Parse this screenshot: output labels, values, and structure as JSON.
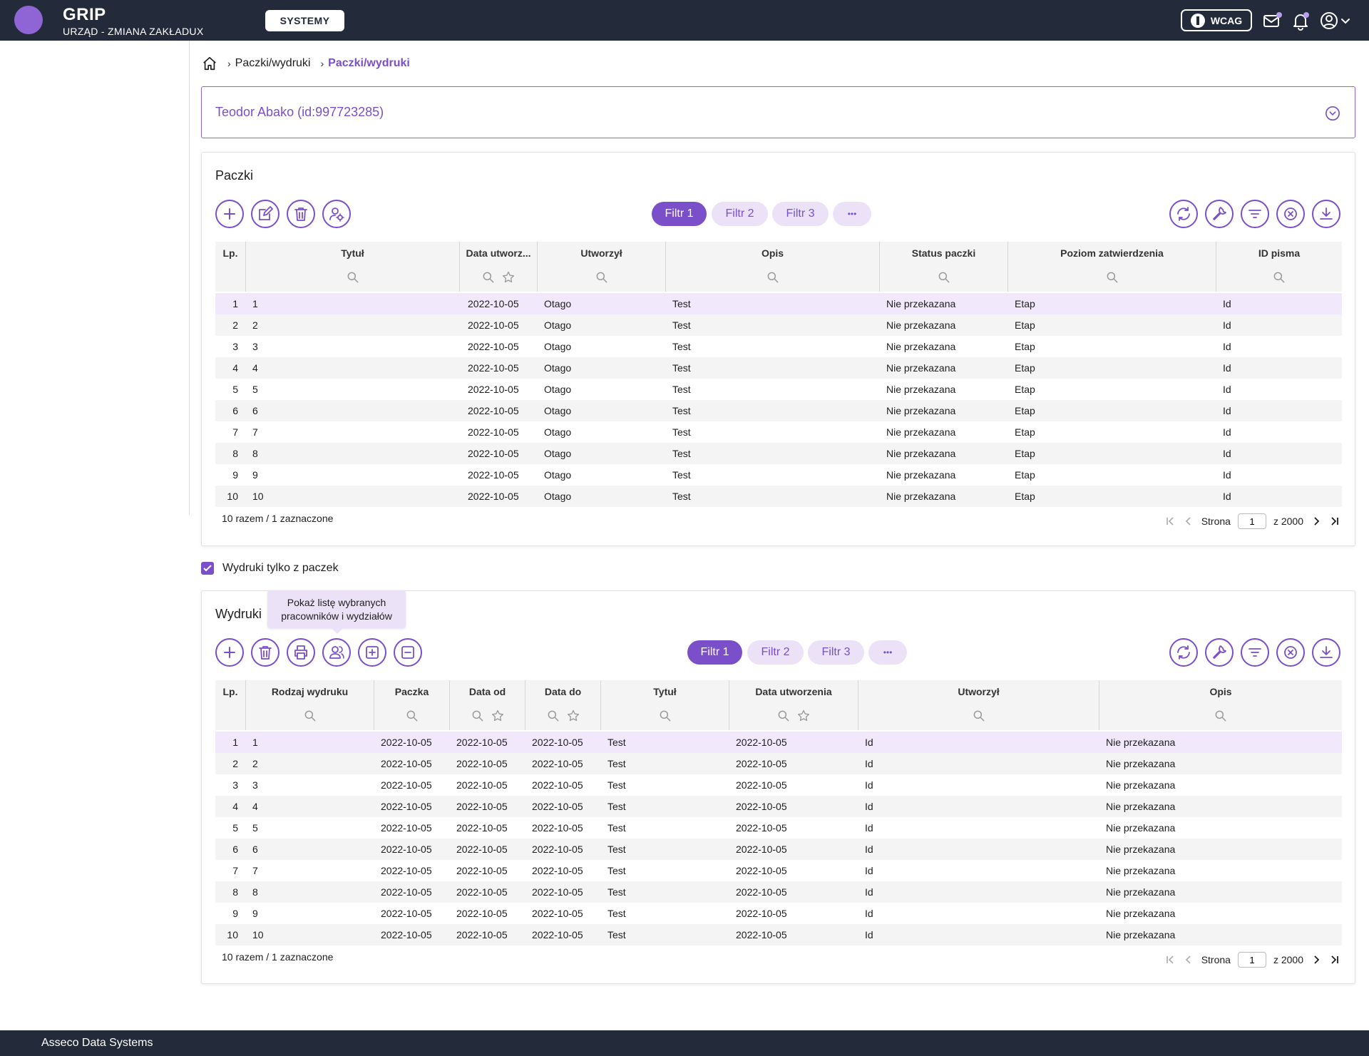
{
  "header": {
    "app_name": "GRIP",
    "app_subtitle": "URZĄD - ZMIANA ZAKŁADUX",
    "systems_button": "SYSTEMY",
    "wcag_button": "WCAG"
  },
  "breadcrumb": {
    "item1": "Paczki/wydruki",
    "item2": "Paczki/wydruki"
  },
  "person": {
    "name": "Teodor Abako (id:997723285)"
  },
  "paczki": {
    "title": "Paczki",
    "filters": [
      "Filtr 1",
      "Filtr 2",
      "Filtr 3"
    ],
    "more_label": "•••",
    "columns": [
      "Lp.",
      "Tytuł",
      "Data utworz...",
      "Utworzył",
      "Opis",
      "Status paczki",
      "Poziom zatwierdzenia",
      "ID pisma"
    ],
    "rows": [
      [
        "1",
        "1",
        "2022-10-05",
        "Otago",
        "Test",
        "Nie przekazana",
        "Etap",
        "Id"
      ],
      [
        "2",
        "2",
        "2022-10-05",
        "Otago",
        "Test",
        "Nie przekazana",
        "Etap",
        "Id"
      ],
      [
        "3",
        "3",
        "2022-10-05",
        "Otago",
        "Test",
        "Nie przekazana",
        "Etap",
        "Id"
      ],
      [
        "4",
        "4",
        "2022-10-05",
        "Otago",
        "Test",
        "Nie przekazana",
        "Etap",
        "Id"
      ],
      [
        "5",
        "5",
        "2022-10-05",
        "Otago",
        "Test",
        "Nie przekazana",
        "Etap",
        "Id"
      ],
      [
        "6",
        "6",
        "2022-10-05",
        "Otago",
        "Test",
        "Nie przekazana",
        "Etap",
        "Id"
      ],
      [
        "7",
        "7",
        "2022-10-05",
        "Otago",
        "Test",
        "Nie przekazana",
        "Etap",
        "Id"
      ],
      [
        "8",
        "8",
        "2022-10-05",
        "Otago",
        "Test",
        "Nie przekazana",
        "Etap",
        "Id"
      ],
      [
        "9",
        "9",
        "2022-10-05",
        "Otago",
        "Test",
        "Nie przekazana",
        "Etap",
        "Id"
      ],
      [
        "10",
        "10",
        "2022-10-05",
        "Otago",
        "Test",
        "Nie przekazana",
        "Etap",
        "Id"
      ]
    ],
    "summary": "10 razem / 1 zaznaczone",
    "pager": {
      "label": "Strona",
      "page": "1",
      "of": "z 2000"
    }
  },
  "checkbox": {
    "label": "Wydruki tylko z paczek",
    "checked": true
  },
  "tooltip": {
    "line1": "Pokaż listę wybranych",
    "line2": "pracowników i wydziałów"
  },
  "wydruki": {
    "title": "Wydruki",
    "filters": [
      "Filtr 1",
      "Filtr 2",
      "Filtr 3"
    ],
    "more_label": "•••",
    "columns": [
      "Lp.",
      "Rodzaj wydruku",
      "Paczka",
      "Data od",
      "Data do",
      "Tytuł",
      "Data utworzenia",
      "Utworzył",
      "Opis"
    ],
    "rows": [
      [
        "1",
        "1",
        "2022-10-05",
        "2022-10-05",
        "2022-10-05",
        "Test",
        "2022-10-05",
        "Id",
        "Nie przekazana"
      ],
      [
        "2",
        "2",
        "2022-10-05",
        "2022-10-05",
        "2022-10-05",
        "Test",
        "2022-10-05",
        "Id",
        "Nie przekazana"
      ],
      [
        "3",
        "3",
        "2022-10-05",
        "2022-10-05",
        "2022-10-05",
        "Test",
        "2022-10-05",
        "Id",
        "Nie przekazana"
      ],
      [
        "4",
        "4",
        "2022-10-05",
        "2022-10-05",
        "2022-10-05",
        "Test",
        "2022-10-05",
        "Id",
        "Nie przekazana"
      ],
      [
        "5",
        "5",
        "2022-10-05",
        "2022-10-05",
        "2022-10-05",
        "Test",
        "2022-10-05",
        "Id",
        "Nie przekazana"
      ],
      [
        "6",
        "6",
        "2022-10-05",
        "2022-10-05",
        "2022-10-05",
        "Test",
        "2022-10-05",
        "Id",
        "Nie przekazana"
      ],
      [
        "7",
        "7",
        "2022-10-05",
        "2022-10-05",
        "2022-10-05",
        "Test",
        "2022-10-05",
        "Id",
        "Nie przekazana"
      ],
      [
        "8",
        "8",
        "2022-10-05",
        "2022-10-05",
        "2022-10-05",
        "Test",
        "2022-10-05",
        "Id",
        "Nie przekazana"
      ],
      [
        "9",
        "9",
        "2022-10-05",
        "2022-10-05",
        "2022-10-05",
        "Test",
        "2022-10-05",
        "Id",
        "Nie przekazana"
      ],
      [
        "10",
        "10",
        "2022-10-05",
        "2022-10-05",
        "2022-10-05",
        "Test",
        "2022-10-05",
        "Id",
        "Nie przekazana"
      ]
    ],
    "summary": "10 razem / 1 zaznaczone",
    "pager": {
      "label": "Strona",
      "page": "1",
      "of": "z 2000"
    }
  },
  "footer": {
    "company": "Asseco Data Systems"
  },
  "colors": {
    "accent": "#7a4fc9",
    "accent_light": "#ebe2f8",
    "topbar": "#232b3b",
    "selected_row": "#f1e9fb"
  },
  "icons": {
    "paczki_left": [
      "plus-icon",
      "edit-icon",
      "trash-icon",
      "user-settings-icon"
    ],
    "wydruki_left": [
      "plus-icon",
      "trash-icon",
      "print-icon",
      "users-icon",
      "expand-all-icon",
      "collapse-all-icon"
    ],
    "right": [
      "refresh-icon",
      "wrench-icon",
      "filter-icon",
      "clear-icon",
      "download-icon"
    ]
  }
}
